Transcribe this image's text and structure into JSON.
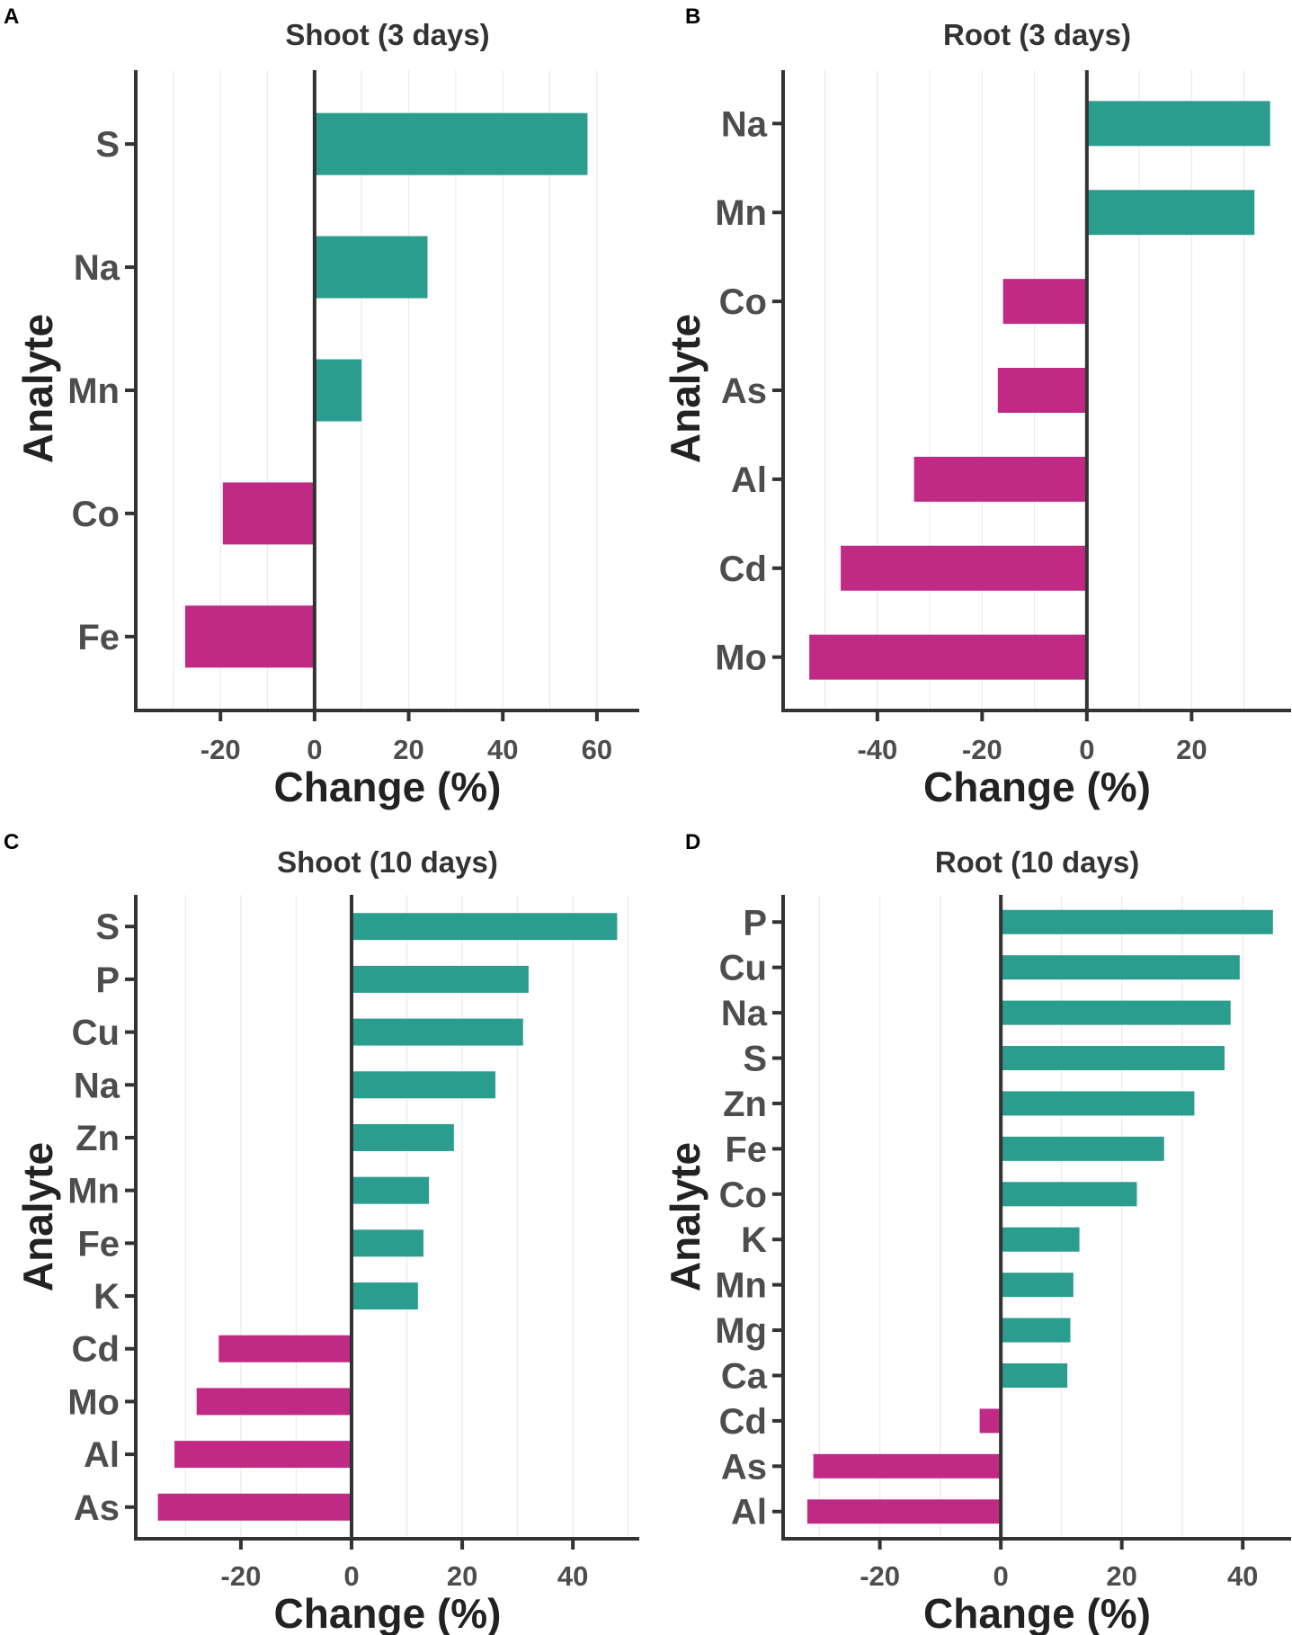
{
  "colors": {
    "positive": "#2a9d8f",
    "negative": "#c02a85"
  },
  "chart_data": [
    {
      "type": "bar",
      "orientation": "horizontal",
      "panel": "A",
      "title": "Shoot (3 days)",
      "xlabel": "Change (%)",
      "ylabel": "Analyte",
      "xlim": [
        -38,
        69
      ],
      "xticks": [
        -20,
        0,
        20,
        40,
        60
      ],
      "grid": true,
      "categories": [
        "S",
        "Na",
        "Mn",
        "Co",
        "Fe"
      ],
      "values": [
        58,
        24,
        10,
        -19.5,
        -27.5
      ]
    },
    {
      "type": "bar",
      "orientation": "horizontal",
      "panel": "B",
      "title": "Root (3 days)",
      "xlabel": "Change (%)",
      "ylabel": "Analyte",
      "xlim": [
        -58,
        39
      ],
      "xticks": [
        -40,
        -20,
        0,
        20
      ],
      "grid": true,
      "categories": [
        "Na",
        "Mn",
        "Co",
        "As",
        "Al",
        "Cd",
        "Mo"
      ],
      "values": [
        35,
        32,
        -16,
        -17,
        -33,
        -47,
        -53
      ]
    },
    {
      "type": "bar",
      "orientation": "horizontal",
      "panel": "C",
      "title": "Shoot (10 days)",
      "xlabel": "Change (%)",
      "ylabel": "Analyte",
      "xlim": [
        -39,
        52
      ],
      "xticks": [
        -20,
        0,
        20,
        40
      ],
      "grid": true,
      "categories": [
        "S",
        "P",
        "Cu",
        "Na",
        "Zn",
        "Mn",
        "Fe",
        "K",
        "Cd",
        "Mo",
        "Al",
        "As"
      ],
      "values": [
        48,
        32,
        31,
        26,
        18.5,
        14,
        13,
        12,
        -24,
        -28,
        -32,
        -35
      ]
    },
    {
      "type": "bar",
      "orientation": "horizontal",
      "panel": "D",
      "title": "Root (10 days)",
      "xlabel": "Change (%)",
      "ylabel": "Analyte",
      "xlim": [
        -36,
        48
      ],
      "xticks": [
        -20,
        0,
        20,
        40
      ],
      "grid": true,
      "categories": [
        "P",
        "Cu",
        "Na",
        "S",
        "Zn",
        "Fe",
        "Co",
        "K",
        "Mn",
        "Mg",
        "Ca",
        "Cd",
        "As",
        "Al"
      ],
      "values": [
        45,
        39.5,
        38,
        37,
        32,
        27,
        22.5,
        13,
        12,
        11.5,
        11,
        -3.5,
        -31,
        -32
      ]
    }
  ]
}
